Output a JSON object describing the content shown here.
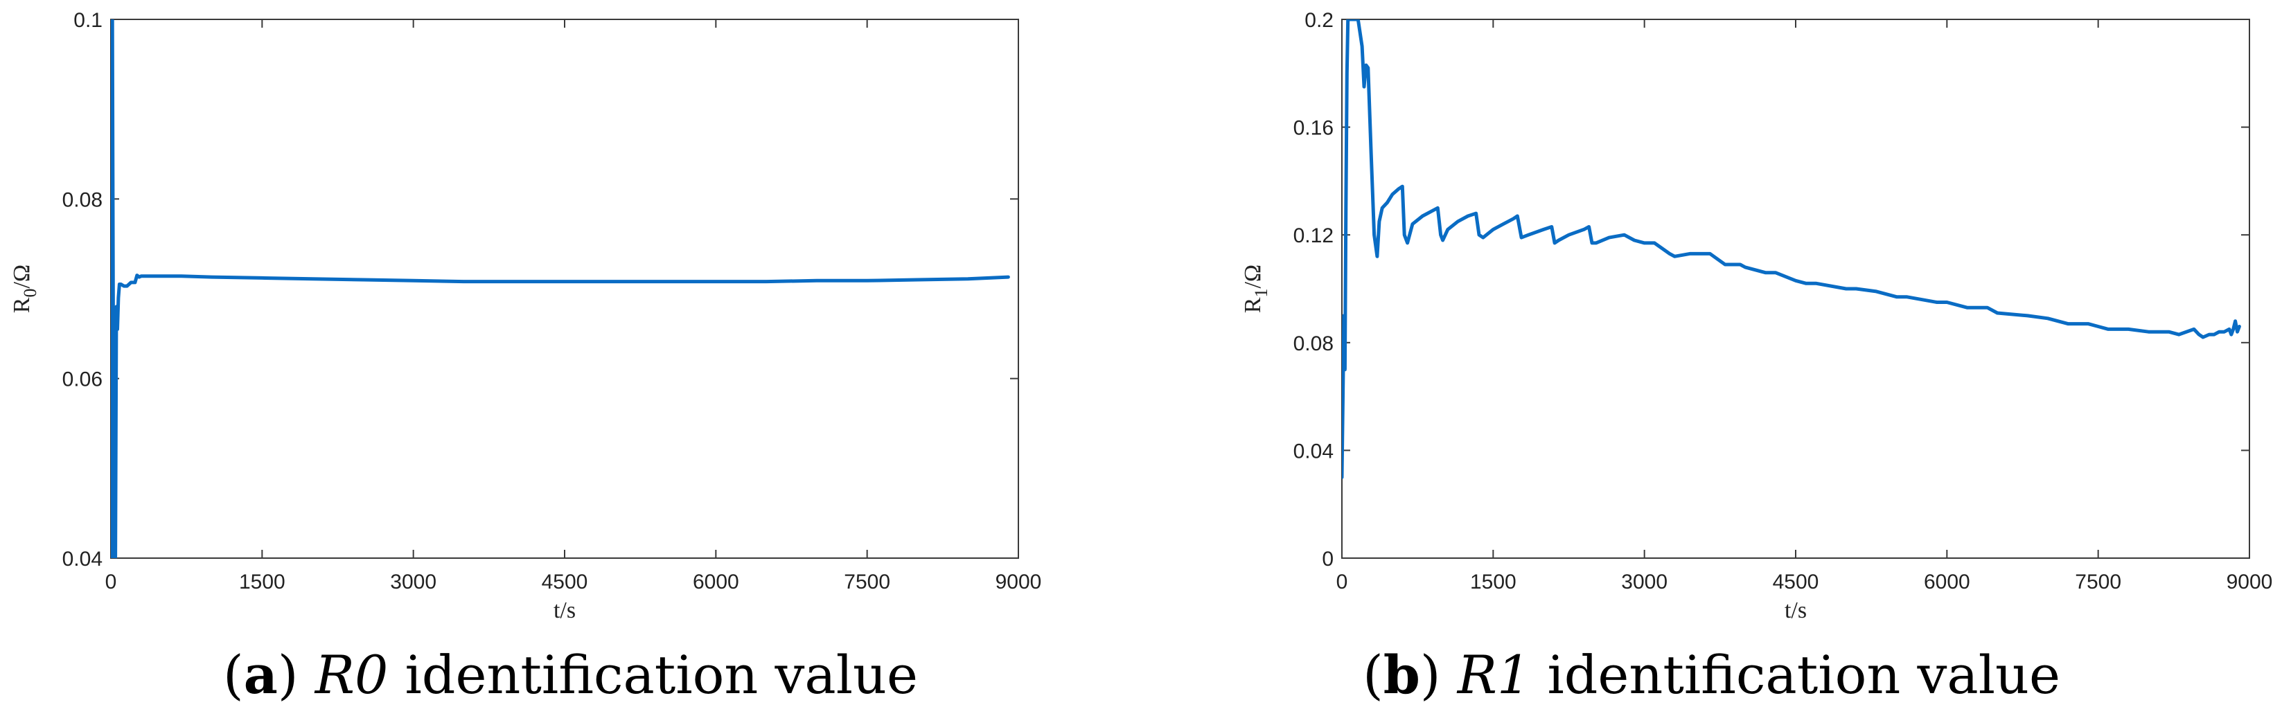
{
  "series_color": "#0a6cc4",
  "chart_data": [
    {
      "type": "line",
      "caption": {
        "letter": "a",
        "symbol": "R0",
        "text": "identification value"
      },
      "xlabel": "t/s",
      "ylabel_main": "R",
      "ylabel_sub": "0",
      "ylabel_unit": "/Ω",
      "xlim": [
        0,
        9000
      ],
      "ylim": [
        0.04,
        0.1
      ],
      "xticks": [
        "0",
        "1500",
        "3000",
        "4500",
        "6000",
        "7500",
        "9000"
      ],
      "yticks": [
        "0.04",
        "0.06",
        "0.08",
        "0.1"
      ],
      "grid": false,
      "legend": "none",
      "series": [
        {
          "x": [
            0,
            8,
            15,
            30,
            45,
            55,
            65,
            75,
            85,
            100,
            130,
            160,
            200,
            240,
            260,
            280,
            300,
            400,
            500,
            700,
            1000,
            1500,
            2000,
            2500,
            3000,
            3500,
            4000,
            4500,
            5000,
            5500,
            6000,
            6500,
            7000,
            7500,
            8000,
            8500,
            8900
          ],
          "y": [
            0.04,
            0.1,
            0.1,
            0.04,
            0.04,
            0.068,
            0.0655,
            0.069,
            0.0705,
            0.0705,
            0.0703,
            0.0703,
            0.0707,
            0.0707,
            0.0715,
            0.0713,
            0.0714,
            0.0714,
            0.0714,
            0.0714,
            0.0713,
            0.0712,
            0.0711,
            0.071,
            0.0709,
            0.0708,
            0.0708,
            0.0708,
            0.0708,
            0.0708,
            0.0708,
            0.0708,
            0.0709,
            0.0709,
            0.071,
            0.0711,
            0.0713
          ]
        }
      ]
    },
    {
      "type": "line",
      "caption": {
        "letter": "b",
        "symbol": "R1",
        "text": "identification value"
      },
      "xlabel": "t/s",
      "ylabel_main": "R",
      "ylabel_sub": "1",
      "ylabel_unit": "/Ω",
      "xlim": [
        0,
        9000
      ],
      "ylim": [
        0,
        0.2
      ],
      "xticks": [
        "0",
        "1500",
        "3000",
        "4500",
        "6000",
        "7500",
        "9000"
      ],
      "yticks": [
        "0",
        "0.04",
        "0.08",
        "0.12",
        "0.16",
        "0.2"
      ],
      "grid": false,
      "legend": "none",
      "series": [
        {
          "x": [
            0,
            10,
            20,
            30,
            40,
            50,
            60,
            80,
            100,
            130,
            160,
            200,
            220,
            240,
            260,
            290,
            320,
            350,
            370,
            400,
            450,
            500,
            560,
            600,
            620,
            650,
            700,
            800,
            900,
            950,
            980,
            1000,
            1050,
            1150,
            1250,
            1330,
            1360,
            1400,
            1500,
            1600,
            1700,
            1740,
            1780,
            1850,
            2000,
            2080,
            2110,
            2150,
            2250,
            2400,
            2450,
            2480,
            2520,
            2650,
            2800,
            2900,
            3000,
            3100,
            3250,
            3300,
            3450,
            3500,
            3650,
            3800,
            3950,
            4000,
            4200,
            4300,
            4500,
            4600,
            4700,
            5000,
            5100,
            5300,
            5500,
            5600,
            5900,
            6000,
            6200,
            6400,
            6500,
            6800,
            7000,
            7200,
            7400,
            7500,
            7600,
            7800,
            8000,
            8200,
            8300,
            8450,
            8500,
            8540,
            8600,
            8650,
            8700,
            8750,
            8800,
            8820,
            8840,
            8860,
            8880,
            8900
          ],
          "y": [
            0.03,
            0.06,
            0.09,
            0.07,
            0.13,
            0.18,
            0.2,
            0.2,
            0.2,
            0.2,
            0.2,
            0.19,
            0.175,
            0.183,
            0.182,
            0.15,
            0.12,
            0.112,
            0.125,
            0.13,
            0.132,
            0.135,
            0.137,
            0.138,
            0.12,
            0.117,
            0.124,
            0.127,
            0.129,
            0.13,
            0.12,
            0.118,
            0.122,
            0.125,
            0.127,
            0.128,
            0.12,
            0.119,
            0.122,
            0.124,
            0.126,
            0.127,
            0.119,
            0.12,
            0.122,
            0.123,
            0.117,
            0.118,
            0.12,
            0.122,
            0.123,
            0.117,
            0.117,
            0.119,
            0.12,
            0.118,
            0.117,
            0.117,
            0.113,
            0.112,
            0.113,
            0.113,
            0.113,
            0.109,
            0.109,
            0.108,
            0.106,
            0.106,
            0.103,
            0.102,
            0.102,
            0.1,
            0.1,
            0.099,
            0.097,
            0.097,
            0.095,
            0.095,
            0.093,
            0.093,
            0.091,
            0.09,
            0.089,
            0.087,
            0.087,
            0.086,
            0.085,
            0.085,
            0.084,
            0.084,
            0.083,
            0.085,
            0.083,
            0.082,
            0.083,
            0.083,
            0.084,
            0.084,
            0.085,
            0.083,
            0.085,
            0.088,
            0.084,
            0.086
          ]
        }
      ]
    }
  ]
}
